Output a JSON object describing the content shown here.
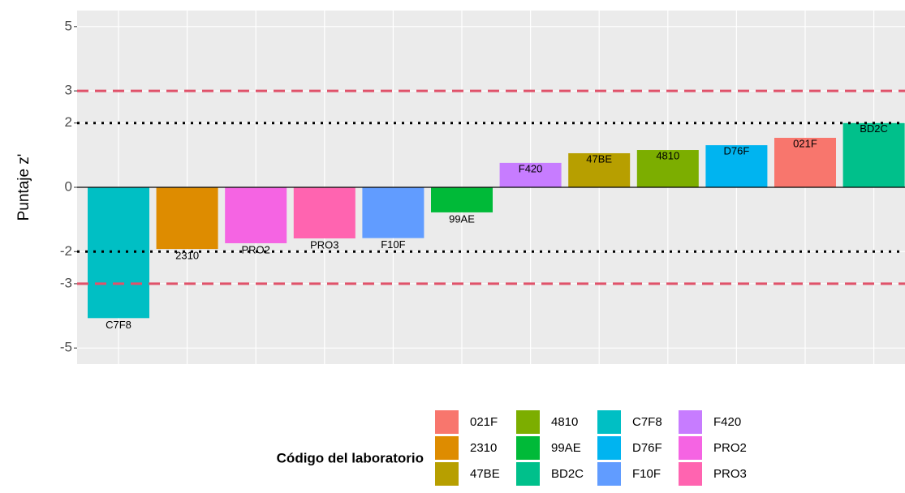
{
  "chart_data": {
    "type": "bar",
    "y_label": "Puntaje z'",
    "legend_title": "Código del laboratorio",
    "categories": [
      "C7F8",
      "2310",
      "PRO2",
      "PRO3",
      "F10F",
      "99AE",
      "F420",
      "47BE",
      "4810",
      "D76F",
      "021F",
      "BD2C"
    ],
    "values": [
      -4.07,
      -1.92,
      -1.74,
      -1.59,
      -1.58,
      -0.78,
      0.76,
      1.06,
      1.16,
      1.31,
      1.54,
      2.0
    ],
    "colors": [
      "#00BFC4",
      "#DE8C00",
      "#F564E3",
      "#FF64B0",
      "#619CFF",
      "#00BA38",
      "#C77CFF",
      "#B79F00",
      "#7CAE00",
      "#00B4F0",
      "#F8766D",
      "#00C08B"
    ],
    "ylim": [
      -5.5,
      5.5
    ],
    "yticks": [
      -5,
      -3,
      -2,
      0,
      2,
      3,
      5
    ],
    "reference_lines": [
      {
        "value": 3,
        "style": "dashed",
        "color": "#E0526A"
      },
      {
        "value": -3,
        "style": "dashed",
        "color": "#E0526A"
      },
      {
        "value": 2,
        "style": "dotted",
        "color": "#000000"
      },
      {
        "value": -2,
        "style": "dotted",
        "color": "#000000"
      },
      {
        "value": 0,
        "style": "solid",
        "color": "#000000"
      }
    ],
    "grid": true
  }
}
